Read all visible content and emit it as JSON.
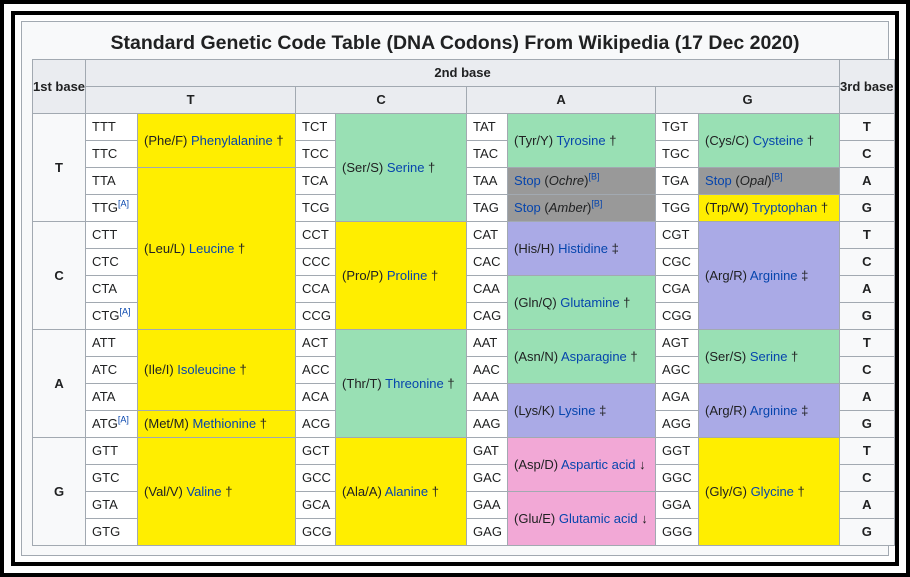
{
  "title": "Standard Genetic Code Table (DNA Codons) From Wikipedia (17 Dec 2020)",
  "headers": {
    "first_base": "1st base",
    "second_base": "2nd base",
    "third_base": "3rd base",
    "second": [
      "T",
      "C",
      "A",
      "G"
    ]
  },
  "rows": {
    "first": [
      "T",
      "C",
      "A",
      "G"
    ],
    "third": [
      "T",
      "C",
      "A",
      "G",
      "T",
      "C",
      "A",
      "G",
      "T",
      "C",
      "A",
      "G",
      "T",
      "C",
      "A",
      "G"
    ]
  },
  "footnote_A": "[A]",
  "footnote_B": "[B]",
  "codons": {
    "T": [
      "TTT",
      "TTC",
      "TTA",
      "TTG",
      "CTT",
      "CTC",
      "CTA",
      "CTG",
      "ATT",
      "ATC",
      "ATA",
      "ATG",
      "GTT",
      "GTC",
      "GTA",
      "GTG"
    ],
    "C": [
      "TCT",
      "TCC",
      "TCA",
      "TCG",
      "CCT",
      "CCC",
      "CCA",
      "CCG",
      "ACT",
      "ACC",
      "ACA",
      "ACG",
      "GCT",
      "GCC",
      "GCA",
      "GCG"
    ],
    "A": [
      "TAT",
      "TAC",
      "TAA",
      "TAG",
      "CAT",
      "CAC",
      "CAA",
      "CAG",
      "AAT",
      "AAC",
      "AAA",
      "AAG",
      "GAT",
      "GAC",
      "GAA",
      "GAG"
    ],
    "G": [
      "TGT",
      "TGC",
      "TGA",
      "TGG",
      "CGT",
      "CGC",
      "CGA",
      "CGG",
      "AGT",
      "AGC",
      "AGA",
      "AGG",
      "GGT",
      "GGC",
      "GGA",
      "GGG"
    ]
  },
  "aa": {
    "phe": {
      "code": "(Phe/F)",
      "name": "Phenylalanine",
      "mark": "†"
    },
    "leu": {
      "code": "(Leu/L)",
      "name": "Leucine",
      "mark": "†"
    },
    "ile": {
      "code": "(Ile/I)",
      "name": "Isoleucine",
      "mark": "†"
    },
    "met": {
      "code": "(Met/M)",
      "name": "Methionine",
      "mark": "†"
    },
    "val": {
      "code": "(Val/V)",
      "name": "Valine",
      "mark": "†"
    },
    "ser1": {
      "code": "(Ser/S)",
      "name": "Serine",
      "mark": "†"
    },
    "pro": {
      "code": "(Pro/P)",
      "name": "Proline",
      "mark": "†"
    },
    "thr": {
      "code": "(Thr/T)",
      "name": "Threonine",
      "mark": "†"
    },
    "ala": {
      "code": "(Ala/A)",
      "name": "Alanine",
      "mark": "†"
    },
    "tyr": {
      "code": "(Tyr/Y)",
      "name": "Tyrosine",
      "mark": "†"
    },
    "his": {
      "code": "(His/H)",
      "name": "Histidine",
      "mark": "‡"
    },
    "gln": {
      "code": "(Gln/Q)",
      "name": "Glutamine",
      "mark": "†"
    },
    "asn": {
      "code": "(Asn/N)",
      "name": "Asparagine",
      "mark": "†"
    },
    "lys": {
      "code": "(Lys/K)",
      "name": "Lysine",
      "mark": "‡"
    },
    "asp": {
      "code": "(Asp/D)",
      "name": "Aspartic acid",
      "mark": "↓"
    },
    "glu": {
      "code": "(Glu/E)",
      "name": "Glutamic acid",
      "mark": "↓"
    },
    "cys": {
      "code": "(Cys/C)",
      "name": "Cysteine",
      "mark": "†"
    },
    "trp": {
      "code": "(Trp/W)",
      "name": "Tryptophan",
      "mark": "†"
    },
    "arg1": {
      "code": "(Arg/R)",
      "name": "Arginine",
      "mark": "‡"
    },
    "ser2": {
      "code": "(Ser/S)",
      "name": "Serine",
      "mark": "†"
    },
    "arg2": {
      "code": "(Arg/R)",
      "name": "Arginine",
      "mark": "‡"
    },
    "gly": {
      "code": "(Gly/G)",
      "name": "Glycine",
      "mark": "†"
    }
  },
  "stops": {
    "ochre": {
      "label": "Stop",
      "name": "Ochre"
    },
    "amber": {
      "label": "Stop",
      "name": "Amber"
    },
    "opal": {
      "label": "Stop",
      "name": "Opal"
    }
  },
  "colors": {
    "nonpolar": "#ffee00",
    "polar": "#99e0b4",
    "basic": "#aaaae6",
    "acidic": "#f2a8d6",
    "stop": "#999999",
    "link": "#0645ad"
  }
}
